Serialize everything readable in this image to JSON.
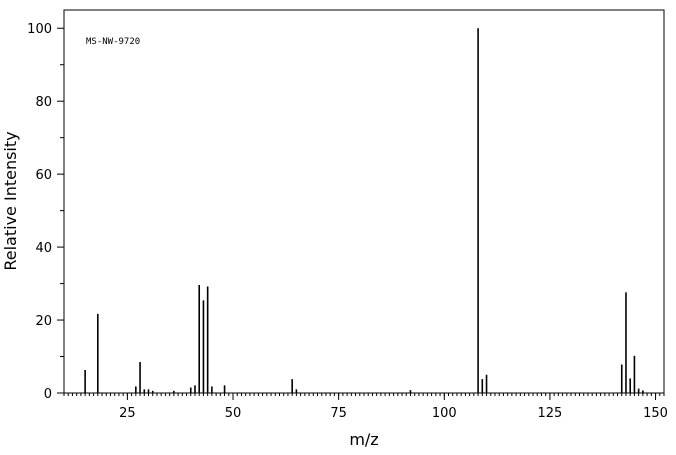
{
  "chart_data": {
    "type": "bar",
    "annotation": "MS-NW-9720",
    "xlabel": "m/z",
    "ylabel": "Relative Intensity",
    "xlim": [
      10,
      152
    ],
    "ylim": [
      0,
      105
    ],
    "xticks": [
      25,
      50,
      75,
      100,
      125,
      150
    ],
    "yticks": [
      0,
      20,
      40,
      60,
      80,
      100
    ],
    "grid": false,
    "x": [
      15,
      18,
      27,
      28,
      29,
      30,
      31,
      36,
      40,
      41,
      42,
      43,
      44,
      45,
      48,
      64,
      65,
      92,
      108,
      109,
      110,
      142,
      143,
      144,
      145,
      146,
      147
    ],
    "values": [
      6.3,
      21.7,
      1.8,
      8.5,
      1.0,
      1.0,
      0.6,
      0.6,
      1.5,
      2.1,
      29.6,
      25.4,
      29.2,
      1.8,
      2.1,
      3.8,
      1.0,
      0.8,
      100,
      3.8,
      5.0,
      7.8,
      27.6,
      4.0,
      10.2,
      1.2,
      0.7
    ]
  }
}
